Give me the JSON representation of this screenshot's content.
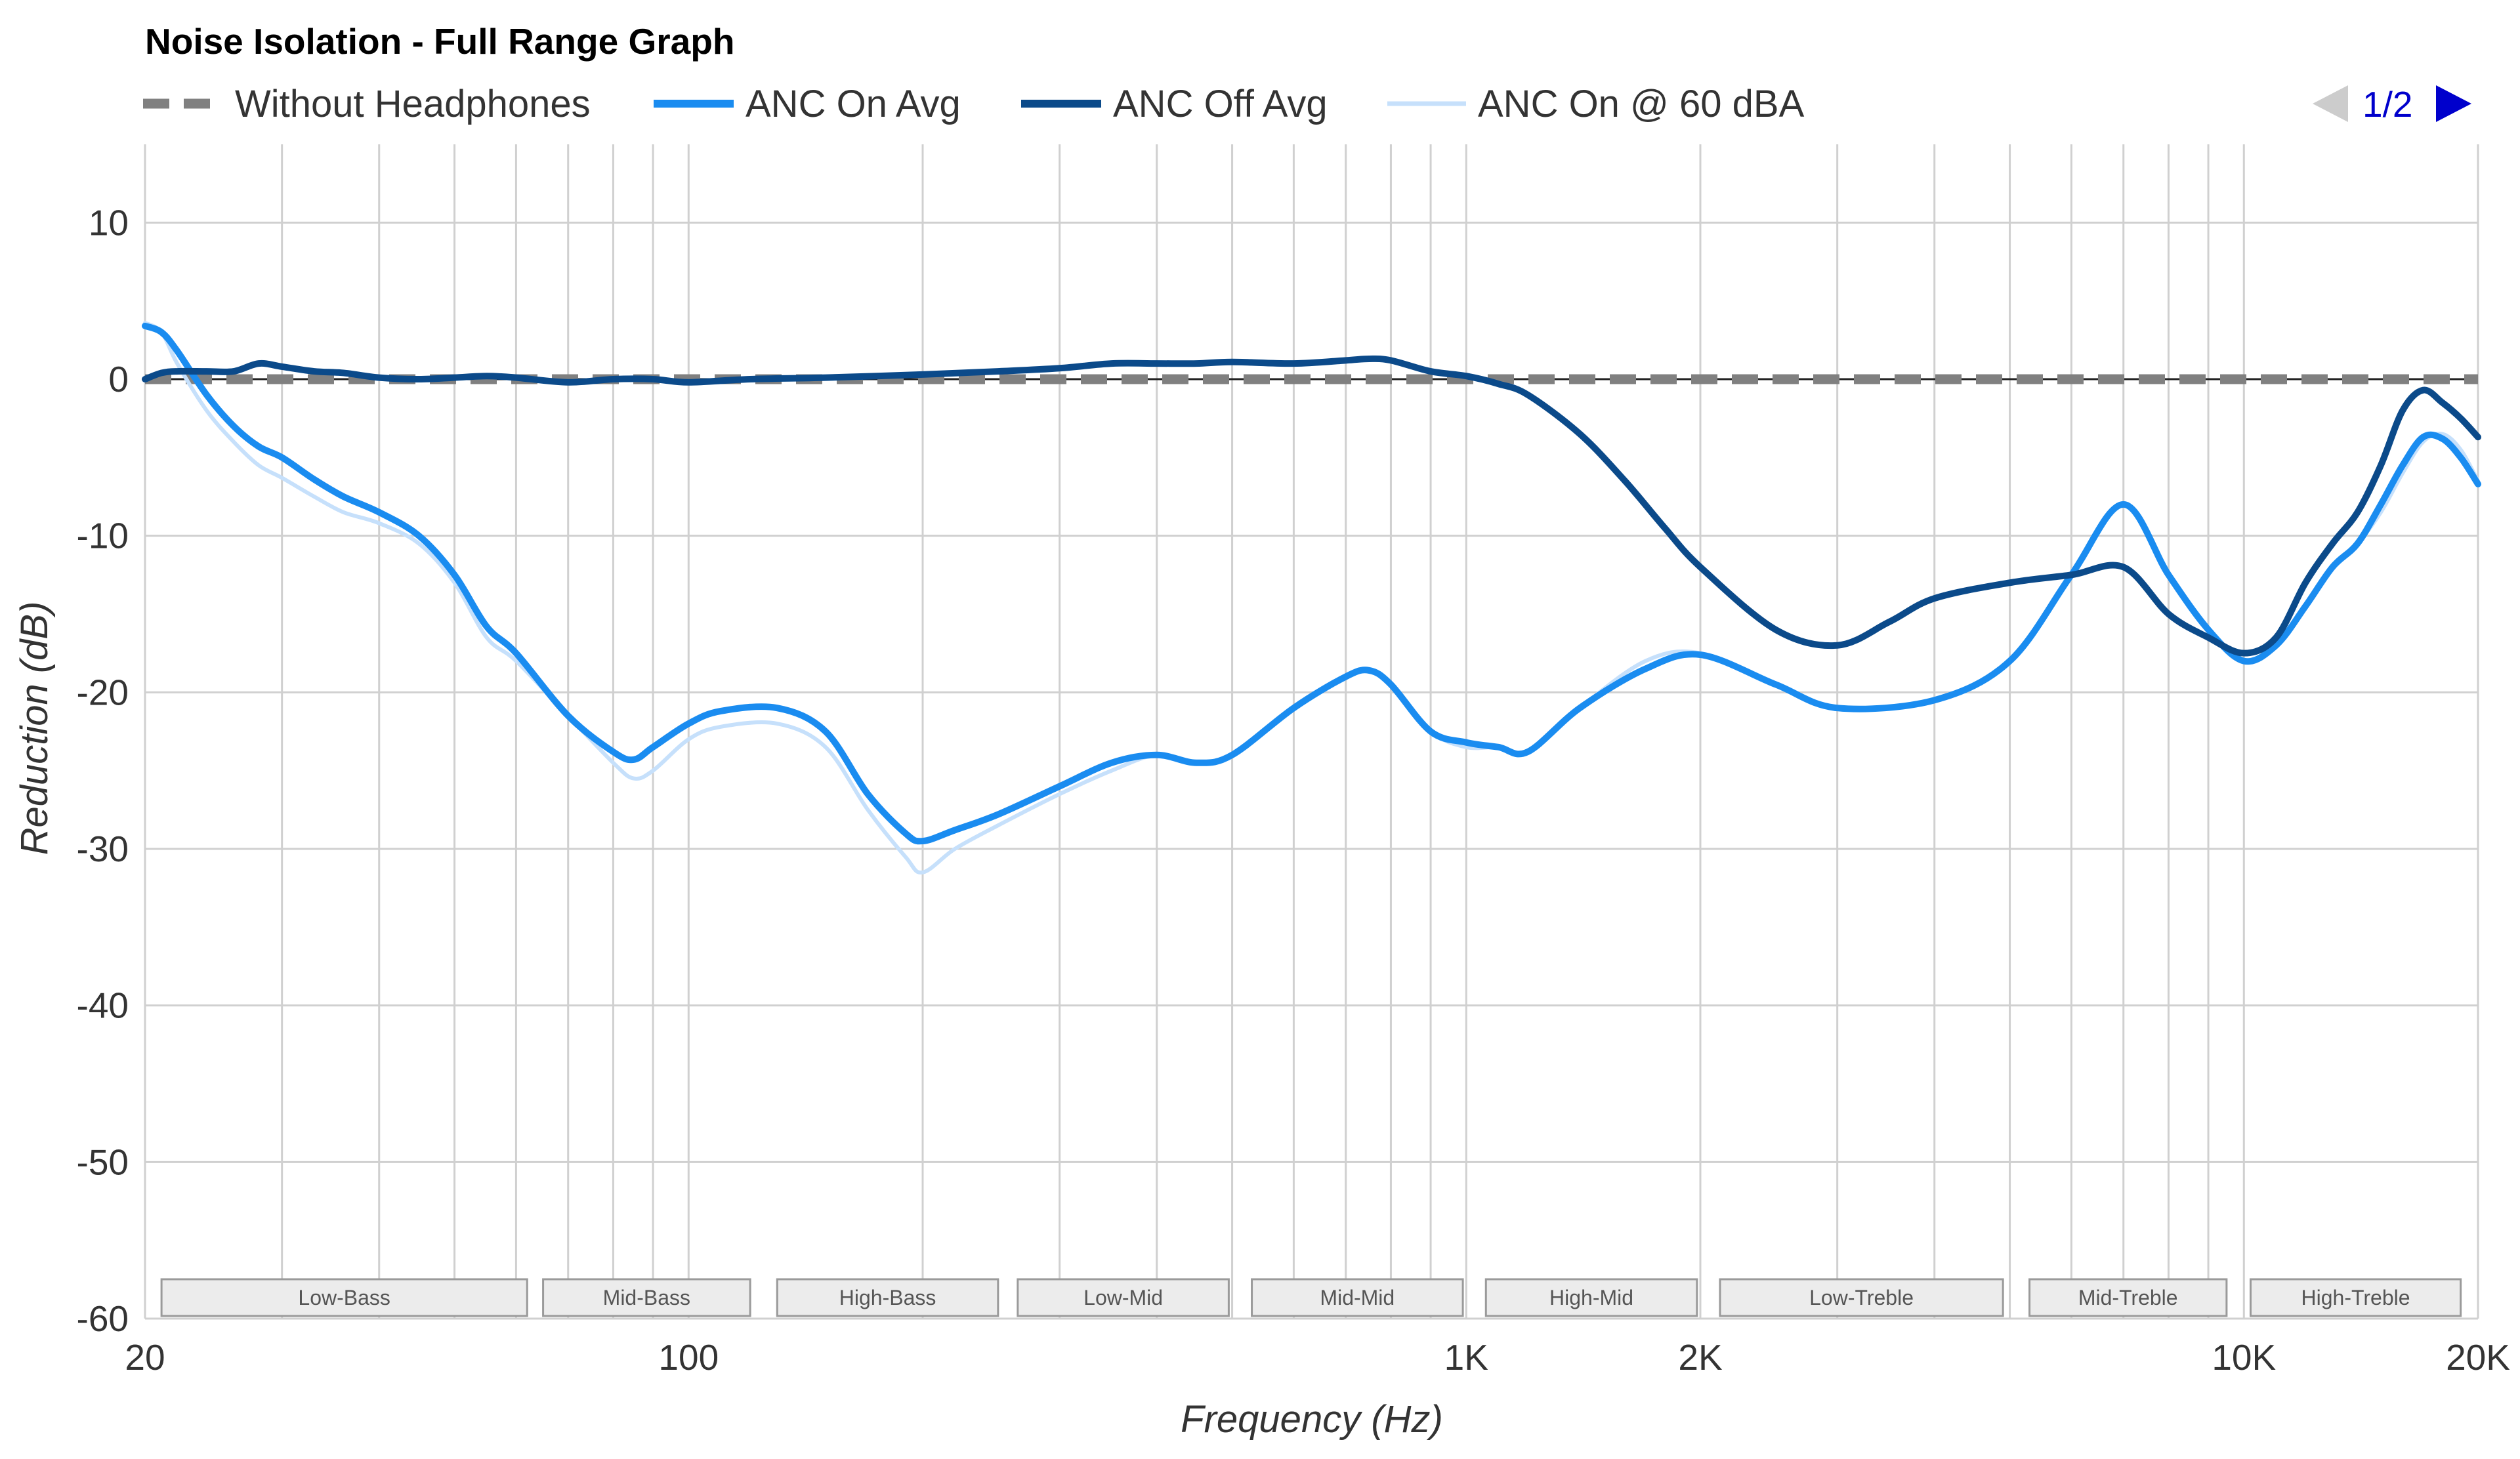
{
  "chart_data": {
    "type": "line",
    "title": "Noise Isolation - Full Range Graph",
    "xlabel": "Frequency (Hz)",
    "ylabel": "Reduction (dB)",
    "xscale": "log",
    "xlim": [
      20,
      20000
    ],
    "ylim": [
      -60,
      15
    ],
    "grid": true,
    "legend_position": "top-left",
    "x_ticks": [
      {
        "value": 20,
        "label": "20"
      },
      {
        "value": 100,
        "label": "100"
      },
      {
        "value": 1000,
        "label": "1K"
      },
      {
        "value": 2000,
        "label": "2K"
      },
      {
        "value": 10000,
        "label": "10K"
      },
      {
        "value": 20000,
        "label": "20K"
      }
    ],
    "y_ticks": [
      {
        "value": 10,
        "label": "10"
      },
      {
        "value": 0,
        "label": "0"
      },
      {
        "value": -10,
        "label": "-10"
      },
      {
        "value": -20,
        "label": "-20"
      },
      {
        "value": -30,
        "label": "-30"
      },
      {
        "value": -40,
        "label": "-40"
      },
      {
        "value": -50,
        "label": "-50"
      },
      {
        "value": -60,
        "label": "-60"
      }
    ],
    "grid_x": [
      20,
      30,
      40,
      50,
      60,
      70,
      80,
      90,
      100,
      200,
      300,
      400,
      500,
      600,
      700,
      800,
      900,
      1000,
      2000,
      3000,
      4000,
      5000,
      6000,
      7000,
      8000,
      9000,
      10000,
      20000
    ],
    "bands": [
      {
        "label": "Low-Bass",
        "from": 21,
        "to": 62
      },
      {
        "label": "Mid-Bass",
        "from": 65,
        "to": 120
      },
      {
        "label": "High-Bass",
        "from": 130,
        "to": 250
      },
      {
        "label": "Low-Mid",
        "from": 265,
        "to": 495
      },
      {
        "label": "Mid-Mid",
        "from": 530,
        "to": 990
      },
      {
        "label": "High-Mid",
        "from": 1060,
        "to": 1980
      },
      {
        "label": "Low-Treble",
        "from": 2120,
        "to": 4900
      },
      {
        "label": "Mid-Treble",
        "from": 5300,
        "to": 9500
      },
      {
        "label": "High-Treble",
        "from": 10200,
        "to": 19000
      }
    ],
    "series": [
      {
        "name": "Without Headphones",
        "color": "#808080",
        "style": "dashed",
        "legend_style": "dashed",
        "x": [
          20,
          20000
        ],
        "y": [
          0,
          0
        ]
      },
      {
        "name": "ANC On @ 60 dBA",
        "color": "#c6e0fb",
        "style": "solid",
        "legend_style": "solid",
        "x": [
          20,
          21,
          22,
          24,
          26,
          28,
          30,
          33,
          36,
          40,
          45,
          50,
          55,
          60,
          70,
          80,
          85,
          90,
          100,
          110,
          130,
          150,
          170,
          190,
          200,
          220,
          250,
          300,
          350,
          400,
          450,
          500,
          600,
          700,
          750,
          800,
          900,
          1000,
          1100,
          1200,
          1400,
          1700,
          2000,
          2500,
          3000,
          4000,
          5000,
          6000,
          7000,
          8000,
          9000,
          10000,
          11000,
          12000,
          13000,
          14000,
          15000,
          16000,
          17000,
          18000,
          19000,
          20000
        ],
        "y": [
          3.6,
          3.0,
          1.0,
          -2.0,
          -4.0,
          -5.5,
          -6.3,
          -7.5,
          -8.5,
          -9.2,
          -10.5,
          -13.0,
          -16.5,
          -18.0,
          -21.5,
          -24.5,
          -25.5,
          -25.0,
          -23.0,
          -22.2,
          -22.0,
          -23.5,
          -27.5,
          -30.5,
          -31.5,
          -30.0,
          -28.5,
          -26.5,
          -25.0,
          -24.0,
          -24.5,
          -24.0,
          -21.0,
          -19.0,
          -18.5,
          -19.5,
          -22.5,
          -23.5,
          -23.5,
          -23.8,
          -21.0,
          -18.0,
          -17.5,
          -19.5,
          -21.0,
          -20.5,
          -18.0,
          -12.5,
          -8.0,
          -12.5,
          -16.0,
          -18.0,
          -17.0,
          -14.5,
          -12.0,
          -10.5,
          -8.5,
          -6.0,
          -4.0,
          -3.5,
          -4.5,
          -6.5
        ]
      },
      {
        "name": "ANC On Avg",
        "color": "#1a8cf0",
        "style": "solid",
        "legend_style": "solid",
        "x": [
          20,
          21,
          22,
          24,
          26,
          28,
          30,
          33,
          36,
          40,
          45,
          50,
          55,
          60,
          70,
          80,
          85,
          90,
          100,
          110,
          130,
          150,
          170,
          190,
          200,
          220,
          250,
          300,
          350,
          400,
          450,
          500,
          600,
          700,
          750,
          800,
          900,
          1000,
          1100,
          1200,
          1400,
          1700,
          2000,
          2500,
          3000,
          4000,
          5000,
          6000,
          7000,
          8000,
          9000,
          10000,
          11000,
          12000,
          13000,
          14000,
          15000,
          16000,
          17000,
          18000,
          19000,
          20000
        ],
        "y": [
          3.4,
          3.0,
          1.8,
          -1.0,
          -3.0,
          -4.3,
          -5.0,
          -6.4,
          -7.5,
          -8.5,
          -10.0,
          -12.5,
          -15.8,
          -17.5,
          -21.5,
          -23.8,
          -24.3,
          -23.5,
          -22.0,
          -21.2,
          -21.0,
          -22.5,
          -26.5,
          -29.0,
          -29.5,
          -28.8,
          -27.8,
          -26.0,
          -24.5,
          -24.0,
          -24.5,
          -24.0,
          -21.0,
          -19.0,
          -18.6,
          -19.5,
          -22.5,
          -23.2,
          -23.5,
          -23.8,
          -21.0,
          -18.5,
          -17.6,
          -19.5,
          -21.0,
          -20.5,
          -18.0,
          -12.5,
          -8.0,
          -12.5,
          -16.0,
          -18.0,
          -17.0,
          -14.5,
          -12.0,
          -10.5,
          -8.0,
          -5.5,
          -3.7,
          -3.8,
          -5.0,
          -6.7
        ]
      },
      {
        "name": "ANC Off Avg",
        "color": "#0b4a8a",
        "style": "solid",
        "legend_style": "solid",
        "x": [
          20,
          21,
          22,
          24,
          26,
          28,
          30,
          33,
          36,
          40,
          45,
          50,
          55,
          60,
          70,
          80,
          90,
          100,
          120,
          150,
          200,
          250,
          300,
          350,
          400,
          450,
          500,
          600,
          700,
          750,
          800,
          900,
          1000,
          1100,
          1200,
          1400,
          1600,
          1800,
          2000,
          2500,
          3000,
          3500,
          4000,
          5000,
          6000,
          7000,
          8000,
          9000,
          10000,
          11000,
          12000,
          13000,
          14000,
          15000,
          16000,
          17000,
          18000,
          19000,
          20000
        ],
        "y": [
          0.0,
          0.4,
          0.5,
          0.5,
          0.5,
          1.0,
          0.8,
          0.5,
          0.4,
          0.1,
          0.0,
          0.1,
          0.2,
          0.1,
          -0.2,
          0.0,
          0.0,
          -0.2,
          0.0,
          0.1,
          0.3,
          0.5,
          0.7,
          1.0,
          1.0,
          1.0,
          1.1,
          1.0,
          1.2,
          1.3,
          1.2,
          0.5,
          0.2,
          -0.3,
          -1.0,
          -3.5,
          -6.5,
          -9.5,
          -12.0,
          -16.0,
          -17.0,
          -15.5,
          -14.0,
          -13.0,
          -12.5,
          -12.0,
          -15.0,
          -16.5,
          -17.5,
          -16.5,
          -13.0,
          -10.5,
          -8.5,
          -5.5,
          -2.0,
          -0.7,
          -1.5,
          -2.5,
          -3.7
        ]
      }
    ]
  },
  "legend": [
    {
      "label": "Without Headphones",
      "color": "#808080",
      "style": "dashed"
    },
    {
      "label": "ANC On Avg",
      "color": "#1a8cf0",
      "style": "solid"
    },
    {
      "label": "ANC Off Avg",
      "color": "#0b4a8a",
      "style": "solid"
    },
    {
      "label": "ANC On @ 60 dBA",
      "color": "#c6e0fb",
      "style": "solid"
    }
  ],
  "pager": {
    "text": "1/2",
    "prev_icon": "triangle-left",
    "next_icon": "triangle-right",
    "prev_color": "#cccccc",
    "next_color": "#0000cc"
  }
}
